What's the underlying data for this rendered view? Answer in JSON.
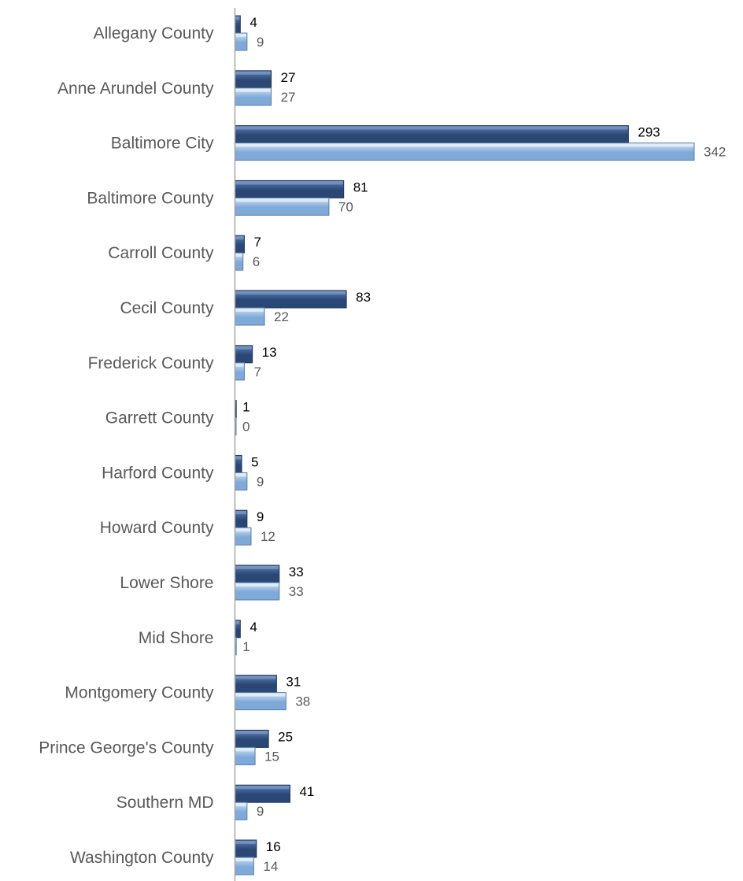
{
  "chart_data": {
    "type": "bar",
    "orientation": "horizontal",
    "categories": [
      "Allegany County",
      "Anne Arundel County",
      "Baltimore City",
      "Baltimore County",
      "Carroll County",
      "Cecil County",
      "Frederick County",
      "Garrett County",
      "Harford County",
      "Howard County",
      "Lower Shore",
      "Mid Shore",
      "Montgomery County",
      "Prince George's County",
      "Southern MD",
      "Washington County"
    ],
    "series": [
      {
        "values": [
          4,
          27,
          293,
          81,
          7,
          83,
          13,
          1,
          5,
          9,
          33,
          4,
          31,
          25,
          41,
          16
        ]
      },
      {
        "values": [
          9,
          27,
          342,
          70,
          6,
          22,
          7,
          0,
          9,
          12,
          33,
          1,
          38,
          15,
          9,
          14
        ]
      }
    ],
    "xlim": [
      0,
      342
    ],
    "grid": false,
    "legend": "none",
    "colors": {
      "series1_light": "#5a80b8",
      "series1_dark": "#2a4775",
      "series1_edge": "#1e3559",
      "series2_light": "#d4e6f7",
      "series2_dark": "#7ea9d8",
      "series2_edge": "#5a7fa9",
      "axis": "#a6a6a6",
      "series1_label": "#000000",
      "series2_label": "#595959"
    }
  }
}
